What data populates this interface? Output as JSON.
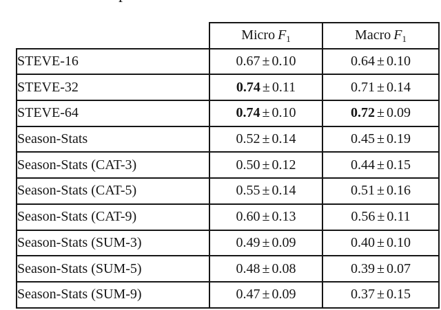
{
  "page": {
    "background": "#ffffff",
    "text_color": "#161616",
    "line_color": "#161616"
  },
  "caption_fragment": {
    "visible_glyph": "p"
  },
  "table": {
    "header": {
      "micro": {
        "label": "Micro",
        "var": "F",
        "sub": "1"
      },
      "macro": {
        "label": "Macro",
        "var": "F",
        "sub": "1"
      }
    },
    "symbols": {
      "plus_minus": "±"
    },
    "rows": [
      {
        "label": "STEVE-16",
        "micro": {
          "mean": "0.67",
          "std": "0.10",
          "bold": false
        },
        "macro": {
          "mean": "0.64",
          "std": "0.10",
          "bold": false
        }
      },
      {
        "label": "STEVE-32",
        "micro": {
          "mean": "0.74",
          "std": "0.11",
          "bold": true
        },
        "macro": {
          "mean": "0.71",
          "std": "0.14",
          "bold": false
        }
      },
      {
        "label": "STEVE-64",
        "micro": {
          "mean": "0.74",
          "std": "0.10",
          "bold": true
        },
        "macro": {
          "mean": "0.72",
          "std": "0.09",
          "bold": true
        }
      },
      {
        "label": "Season-Stats",
        "micro": {
          "mean": "0.52",
          "std": "0.14",
          "bold": false
        },
        "macro": {
          "mean": "0.45",
          "std": "0.19",
          "bold": false
        }
      },
      {
        "label": "Season-Stats (CAT-3)",
        "micro": {
          "mean": "0.50",
          "std": "0.12",
          "bold": false
        },
        "macro": {
          "mean": "0.44",
          "std": "0.15",
          "bold": false
        }
      },
      {
        "label": "Season-Stats (CAT-5)",
        "micro": {
          "mean": "0.55",
          "std": "0.14",
          "bold": false
        },
        "macro": {
          "mean": "0.51",
          "std": "0.16",
          "bold": false
        }
      },
      {
        "label": "Season-Stats (CAT-9)",
        "micro": {
          "mean": "0.60",
          "std": "0.13",
          "bold": false
        },
        "macro": {
          "mean": "0.56",
          "std": "0.11",
          "bold": false
        }
      },
      {
        "label": "Season-Stats (SUM-3)",
        "micro": {
          "mean": "0.49",
          "std": "0.09",
          "bold": false
        },
        "macro": {
          "mean": "0.40",
          "std": "0.10",
          "bold": false
        }
      },
      {
        "label": "Season-Stats (SUM-5)",
        "micro": {
          "mean": "0.48",
          "std": "0.08",
          "bold": false
        },
        "macro": {
          "mean": "0.39",
          "std": "0.07",
          "bold": false
        }
      },
      {
        "label": "Season-Stats (SUM-9)",
        "micro": {
          "mean": "0.47",
          "std": "0.09",
          "bold": false
        },
        "macro": {
          "mean": "0.37",
          "std": "0.15",
          "bold": false
        }
      }
    ]
  }
}
